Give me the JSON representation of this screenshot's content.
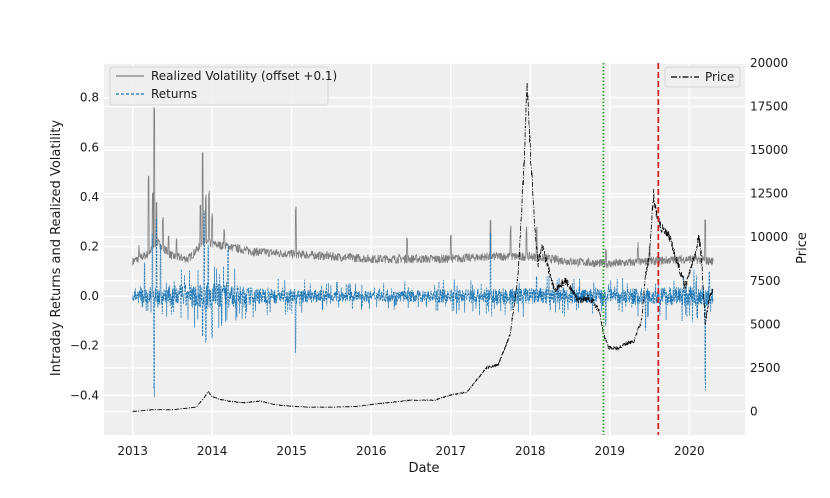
{
  "chart_data": {
    "type": "line",
    "title": "",
    "xlabel": "Date",
    "ylabel_left": "Intraday Returns and Realized Volatility",
    "ylabel_right": "Price",
    "x_range": [
      2012.64,
      2020.7
    ],
    "ylim_left": [
      -0.56,
      0.94
    ],
    "ylim_right": [
      -1350,
      20000
    ],
    "x_ticks": [
      "2013",
      "2014",
      "2015",
      "2016",
      "2017",
      "2018",
      "2019",
      "2020"
    ],
    "y_ticks_left": [
      "−0.4",
      "−0.2",
      "0.0",
      "0.2",
      "0.4",
      "0.6",
      "0.8"
    ],
    "y_ticks_right": [
      "0",
      "2500",
      "5000",
      "7500",
      "10000",
      "12500",
      "15000",
      "17500",
      "20000"
    ],
    "grid": true,
    "series": [
      {
        "name": "Realized Volatility (offset +0.1)",
        "axis": "left",
        "style": "solid",
        "color": "#808080",
        "baseline_points": [
          [
            2013.0,
            0.14
          ],
          [
            2013.2,
            0.17
          ],
          [
            2013.3,
            0.22
          ],
          [
            2013.5,
            0.16
          ],
          [
            2013.7,
            0.15
          ],
          [
            2013.9,
            0.22
          ],
          [
            2014.0,
            0.21
          ],
          [
            2014.2,
            0.2
          ],
          [
            2014.5,
            0.18
          ],
          [
            2015.0,
            0.17
          ],
          [
            2015.5,
            0.16
          ],
          [
            2016.0,
            0.15
          ],
          [
            2016.5,
            0.15
          ],
          [
            2017.0,
            0.15
          ],
          [
            2017.5,
            0.16
          ],
          [
            2018.0,
            0.16
          ],
          [
            2018.5,
            0.14
          ],
          [
            2019.0,
            0.13
          ],
          [
            2019.5,
            0.14
          ],
          [
            2020.0,
            0.15
          ],
          [
            2020.3,
            0.14
          ]
        ],
        "spikes": [
          [
            2013.08,
            0.21
          ],
          [
            2013.2,
            0.49
          ],
          [
            2013.25,
            0.43
          ],
          [
            2013.27,
            0.77
          ],
          [
            2013.3,
            0.38
          ],
          [
            2013.38,
            0.33
          ],
          [
            2013.45,
            0.26
          ],
          [
            2013.55,
            0.24
          ],
          [
            2013.85,
            0.37
          ],
          [
            2013.88,
            0.58
          ],
          [
            2013.92,
            0.42
          ],
          [
            2013.96,
            0.44
          ],
          [
            2014.0,
            0.34
          ],
          [
            2014.15,
            0.27
          ],
          [
            2014.28,
            0.23
          ],
          [
            2015.05,
            0.37
          ],
          [
            2016.45,
            0.25
          ],
          [
            2017.0,
            0.26
          ],
          [
            2017.5,
            0.33
          ],
          [
            2017.75,
            0.29
          ],
          [
            2017.95,
            0.28
          ],
          [
            2018.08,
            0.29
          ],
          [
            2018.95,
            0.19
          ],
          [
            2019.35,
            0.22
          ],
          [
            2019.5,
            0.21
          ],
          [
            2020.2,
            0.33
          ]
        ]
      },
      {
        "name": "Returns",
        "axis": "left",
        "style": "dashed",
        "color": "#1f77b4",
        "noise_band": [
          [
            2013.0,
            0.03
          ],
          [
            2013.5,
            0.06
          ],
          [
            2014.0,
            0.08
          ],
          [
            2014.5,
            0.05
          ],
          [
            2015.0,
            0.04
          ],
          [
            2016.0,
            0.03
          ],
          [
            2017.0,
            0.04
          ],
          [
            2018.0,
            0.05
          ],
          [
            2019.0,
            0.04
          ],
          [
            2020.0,
            0.06
          ]
        ],
        "spikes": [
          [
            2013.15,
            0.14
          ],
          [
            2013.25,
            0.26
          ],
          [
            2013.27,
            -0.41
          ],
          [
            2013.3,
            0.34
          ],
          [
            2013.35,
            0.22
          ],
          [
            2013.88,
            -0.18
          ],
          [
            2013.9,
            0.35
          ],
          [
            2013.92,
            -0.21
          ],
          [
            2013.95,
            0.22
          ],
          [
            2014.0,
            -0.18
          ],
          [
            2014.2,
            0.21
          ],
          [
            2015.05,
            -0.23
          ],
          [
            2017.5,
            0.26
          ],
          [
            2018.08,
            0.08
          ],
          [
            2018.95,
            -0.12
          ],
          [
            2019.45,
            -0.14
          ],
          [
            2020.2,
            -0.39
          ],
          [
            2020.25,
            0.1
          ]
        ]
      },
      {
        "name": "Price",
        "axis": "right",
        "style": "dashdot",
        "color": "#000000",
        "points": [
          [
            2013.0,
            0
          ],
          [
            2013.25,
            100
          ],
          [
            2013.5,
            100
          ],
          [
            2013.8,
            250
          ],
          [
            2013.9,
            800
          ],
          [
            2013.95,
            1150
          ],
          [
            2014.0,
            850
          ],
          [
            2014.1,
            700
          ],
          [
            2014.2,
            600
          ],
          [
            2014.4,
            500
          ],
          [
            2014.6,
            600
          ],
          [
            2014.8,
            380
          ],
          [
            2015.0,
            300
          ],
          [
            2015.2,
            250
          ],
          [
            2015.5,
            250
          ],
          [
            2015.8,
            280
          ],
          [
            2016.0,
            400
          ],
          [
            2016.5,
            650
          ],
          [
            2016.8,
            650
          ],
          [
            2017.0,
            950
          ],
          [
            2017.2,
            1100
          ],
          [
            2017.45,
            2500
          ],
          [
            2017.6,
            2700
          ],
          [
            2017.75,
            4500
          ],
          [
            2017.85,
            8000
          ],
          [
            2017.92,
            14000
          ],
          [
            2017.96,
            19000
          ],
          [
            2018.0,
            15000
          ],
          [
            2018.05,
            11000
          ],
          [
            2018.1,
            8500
          ],
          [
            2018.15,
            9500
          ],
          [
            2018.3,
            7000
          ],
          [
            2018.45,
            7500
          ],
          [
            2018.6,
            6400
          ],
          [
            2018.75,
            6500
          ],
          [
            2018.87,
            5800
          ],
          [
            2018.92,
            4500
          ],
          [
            2018.98,
            3700
          ],
          [
            2019.1,
            3600
          ],
          [
            2019.2,
            3900
          ],
          [
            2019.3,
            4000
          ],
          [
            2019.4,
            5200
          ],
          [
            2019.45,
            7900
          ],
          [
            2019.5,
            9000
          ],
          [
            2019.55,
            12500
          ],
          [
            2019.58,
            11500
          ],
          [
            2019.65,
            10500
          ],
          [
            2019.75,
            10000
          ],
          [
            2019.85,
            8500
          ],
          [
            2019.95,
            7200
          ],
          [
            2020.05,
            8700
          ],
          [
            2020.12,
            10000
          ],
          [
            2020.15,
            9000
          ],
          [
            2020.2,
            5000
          ],
          [
            2020.25,
            6500
          ],
          [
            2020.3,
            7000
          ]
        ]
      }
    ],
    "vlines": [
      {
        "name": "green-dotted-marker",
        "x": 2018.92,
        "color": "#2ca02c",
        "style": "dotted"
      },
      {
        "name": "red-dashed-marker",
        "x": 2019.61,
        "color": "#d62728",
        "style": "dashed"
      }
    ],
    "legend_left": [
      "Realized Volatility (offset +0.1)",
      "Returns"
    ],
    "legend_right": [
      "Price"
    ],
    "legend_left_position": "upper-left",
    "legend_right_position": "upper-right"
  }
}
